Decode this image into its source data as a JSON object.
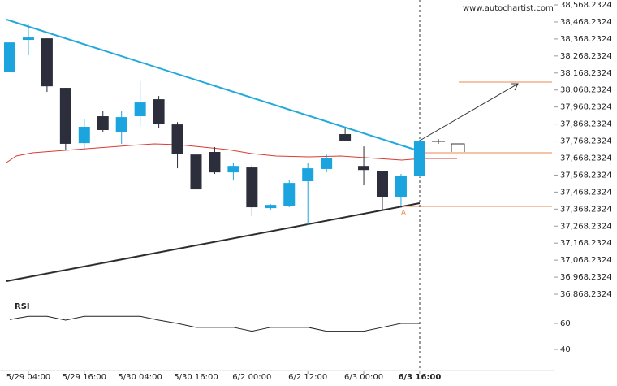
{
  "chart_data": {
    "type": "candlestick",
    "source": "www.autochartist.com",
    "annotation": "A",
    "categories": [
      null,
      "5/29 04:00",
      null,
      null,
      "5/29 16:00",
      null,
      null,
      "5/30 04:00",
      null,
      null,
      "5/30 16:00",
      null,
      null,
      "6/2 00:00",
      null,
      null,
      "6/2 12:00",
      null,
      null,
      "6/3 00:00",
      null,
      null,
      "6/3 16:00"
    ],
    "open": [
      38175,
      38363,
      38372,
      38081,
      37756,
      37914,
      37819,
      37914,
      38014,
      37866,
      37689,
      37704,
      37584,
      37613,
      37374,
      37388,
      37532,
      37604,
      37809,
      37622,
      37594,
      37441,
      37565
    ],
    "high": [
      38348,
      38453,
      38372,
      38081,
      37900,
      37943,
      37943,
      38119,
      38033,
      37880,
      37718,
      37733,
      37642,
      37627,
      37398,
      37541,
      37642,
      37689,
      37847,
      37737,
      37594,
      37575,
      37776
    ],
    "low": [
      38175,
      38272,
      38057,
      37718,
      37718,
      37823,
      37752,
      37857,
      37847,
      37608,
      37393,
      37575,
      37536,
      37326,
      37364,
      37379,
      37274,
      37584,
      37771,
      37508,
      37360,
      37388,
      37556
    ],
    "close": [
      38348,
      38377,
      38090,
      37752,
      37852,
      37833,
      37909,
      37995,
      37871,
      37694,
      37484,
      37584,
      37622,
      37379,
      37393,
      37522,
      37608,
      37666,
      37771,
      37598,
      37441,
      37565,
      37766
    ],
    "up_color": "#1ca4df",
    "down_color": "#2c2e3b",
    "ylim": [
      36854,
      38597
    ],
    "yticks": [
      {
        "value": 38568.2324,
        "label": "38,568.2324"
      },
      {
        "value": 38468.2324,
        "label": "38,468.2324"
      },
      {
        "value": 38368.2324,
        "label": "38,368.2324"
      },
      {
        "value": 38268.2324,
        "label": "38,268.2324"
      },
      {
        "value": 38168.2324,
        "label": "38,168.2324"
      },
      {
        "value": 38068.2324,
        "label": "38,068.2324"
      },
      {
        "value": 37968.2324,
        "label": "37,968.2324"
      },
      {
        "value": 37868.2324,
        "label": "37,868.2324"
      },
      {
        "value": 37768.2324,
        "label": "37,768.2324"
      },
      {
        "value": 37668.2324,
        "label": "37,668.2324"
      },
      {
        "value": 37568.2324,
        "label": "37,568.2324"
      },
      {
        "value": 37468.2324,
        "label": "37,468.2324"
      },
      {
        "value": 37368.2324,
        "label": "37,368.2324"
      },
      {
        "value": 37268.2324,
        "label": "37,268.2324"
      },
      {
        "value": 37168.2324,
        "label": "37,168.2324"
      },
      {
        "value": 37068.2324,
        "label": "37,068.2324"
      },
      {
        "value": 36968.2324,
        "label": "36,968.2324"
      },
      {
        "value": 36868.2324,
        "label": "36,868.2324"
      }
    ],
    "rsi": {
      "name": "RSI",
      "color": "#222",
      "values": [
        63,
        65.5,
        65.5,
        62.5,
        65.5,
        65.5,
        65.5,
        65.5,
        62.5,
        60,
        57,
        57,
        57,
        54,
        57,
        57,
        57,
        54,
        54,
        54,
        57,
        60,
        60
      ],
      "ylim": [
        24.4,
        78.75
      ],
      "yticks": [
        60,
        40
      ]
    }
  }
}
